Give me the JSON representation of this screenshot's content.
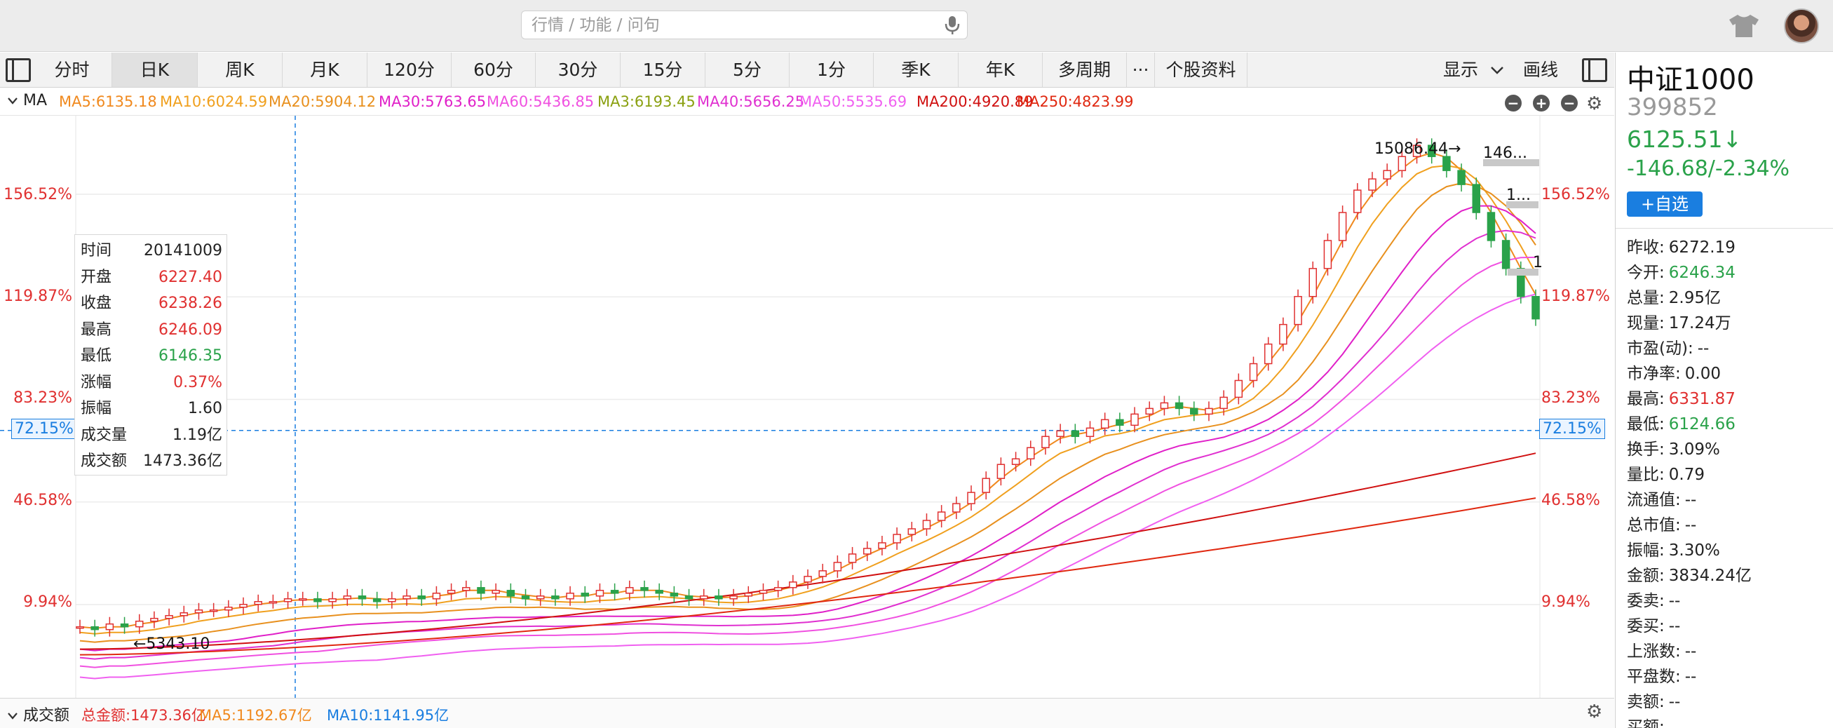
{
  "topbar": {
    "search_placeholder": "行情 / 功能 / 问句",
    "icons": [
      "mic-icon",
      "shirt-icon",
      "avatar"
    ]
  },
  "tabs": [
    {
      "label": "分时",
      "active": false
    },
    {
      "label": "日K",
      "active": true
    },
    {
      "label": "周K",
      "active": false
    },
    {
      "label": "月K",
      "active": false
    },
    {
      "label": "120分",
      "active": false
    },
    {
      "label": "60分",
      "active": false
    },
    {
      "label": "30分",
      "active": false
    },
    {
      "label": "15分",
      "active": false
    },
    {
      "label": "5分",
      "active": false
    },
    {
      "label": "1分",
      "active": false
    },
    {
      "label": "季K",
      "active": false
    },
    {
      "label": "年K",
      "active": false
    },
    {
      "label": "多周期",
      "active": false
    },
    {
      "label": "···",
      "active": false
    },
    {
      "label": "个股资料",
      "active": false
    }
  ],
  "toolbar": {
    "display_label": "显示",
    "draw_label": "画线"
  },
  "ma_legend": {
    "title": "MA",
    "items": [
      {
        "text": "MA5:6135.18",
        "color": "#f0891e"
      },
      {
        "text": "MA10:6024.59",
        "color": "#f0a01e"
      },
      {
        "text": "MA20:5904.12",
        "color": "#e8901e"
      },
      {
        "text": "MA30:5763.65",
        "color": "#e020c8"
      },
      {
        "text": "MA60:5436.85",
        "color": "#f050e0"
      },
      {
        "text": "MA3:6193.45",
        "color": "#8aa010"
      },
      {
        "text": "MA40:5656.25",
        "color": "#e030d0"
      },
      {
        "text": "MA50:5535.69",
        "color": "#f060f0"
      },
      {
        "text": "MA200:4920.89",
        "color": "#d01010"
      },
      {
        "text": "MA250:4823.99",
        "color": "#e02810"
      }
    ]
  },
  "axis": {
    "labels": [
      "156.52%",
      "119.87%",
      "83.23%",
      "72.15%",
      "46.58%",
      "9.94%"
    ],
    "highlight": "72.15%"
  },
  "chart_data": {
    "type": "candlestick",
    "yaxis_percent_ticks": [
      156.52,
      119.87,
      83.23,
      46.58,
      9.94
    ],
    "crosshair_y_percent": 72.15,
    "annotations": [
      {
        "text": "15086.44→",
        "kind": "high"
      },
      {
        "text": "146...",
        "kind": "label"
      },
      {
        "text": "1...",
        "kind": "label"
      },
      {
        "text": "1",
        "kind": "label"
      },
      {
        "text": "←5343.10",
        "kind": "low"
      }
    ],
    "close_series_percent": [
      2,
      1,
      3,
      2,
      4,
      5,
      6,
      7,
      8,
      8,
      9,
      10,
      11,
      11,
      12,
      12,
      11,
      12,
      13,
      12,
      11,
      12,
      13,
      12,
      14,
      15,
      16,
      14,
      15,
      13,
      12,
      13,
      12,
      14,
      13,
      15,
      14,
      16,
      15,
      14,
      13,
      12,
      13,
      12,
      13,
      14,
      15,
      16,
      18,
      20,
      22,
      25,
      28,
      30,
      32,
      35,
      37,
      40,
      43,
      46,
      50,
      55,
      60,
      62,
      66,
      70,
      72,
      70,
      73,
      76,
      74,
      78,
      80,
      82,
      80,
      78,
      80,
      84,
      90,
      96,
      103,
      110,
      120,
      130,
      140,
      150,
      158,
      162,
      165,
      170,
      174,
      170,
      165,
      160,
      150,
      140,
      130,
      120,
      112
    ]
  },
  "info_box": {
    "rows": [
      {
        "k": "时间",
        "v": "20141009",
        "color": "#222222"
      },
      {
        "k": "开盘",
        "v": "6227.40",
        "color": "#e03030"
      },
      {
        "k": "收盘",
        "v": "6238.26",
        "color": "#e03030"
      },
      {
        "k": "最高",
        "v": "6246.09",
        "color": "#e03030"
      },
      {
        "k": "最低",
        "v": "6146.35",
        "color": "#2aa24a"
      },
      {
        "k": "涨幅",
        "v": "0.37%",
        "color": "#e03030"
      },
      {
        "k": "振幅",
        "v": "1.60",
        "color": "#222222"
      },
      {
        "k": "成交量",
        "v": "1.19亿",
        "color": "#222222"
      },
      {
        "k": "成交额",
        "v": "1473.36亿",
        "color": "#222222"
      }
    ]
  },
  "panel": {
    "name": "中证1000",
    "code": "399852",
    "price": "6125.51↓",
    "change": "-146.68/-2.34%",
    "add_button": "+自选",
    "rows": [
      {
        "k": "昨收:",
        "v": "6272.19",
        "cls": ""
      },
      {
        "k": "今开:",
        "v": "6246.34",
        "cls": "dn"
      },
      {
        "k": "总量:",
        "v": "2.95亿",
        "cls": ""
      },
      {
        "k": "现量:",
        "v": "17.24万",
        "cls": ""
      },
      {
        "k": "市盈(动):",
        "v": "--",
        "cls": ""
      },
      {
        "k": "市净率:",
        "v": "0.00",
        "cls": ""
      },
      {
        "k": "最高:",
        "v": "6331.87",
        "cls": "up"
      },
      {
        "k": "最低:",
        "v": "6124.66",
        "cls": "dn"
      },
      {
        "k": "换手:",
        "v": "3.09%",
        "cls": ""
      },
      {
        "k": "量比:",
        "v": "0.79",
        "cls": ""
      },
      {
        "k": "流通值:",
        "v": "--",
        "cls": ""
      },
      {
        "k": "总市值:",
        "v": "--",
        "cls": ""
      },
      {
        "k": "振幅:",
        "v": "3.30%",
        "cls": ""
      },
      {
        "k": "金额:",
        "v": "3834.24亿",
        "cls": ""
      },
      {
        "k": "委卖:",
        "v": "--",
        "cls": ""
      },
      {
        "k": "委买:",
        "v": "--",
        "cls": ""
      },
      {
        "k": "上涨数:",
        "v": "--",
        "cls": ""
      },
      {
        "k": "平盘数:",
        "v": "--",
        "cls": ""
      },
      {
        "k": "卖额:",
        "v": "--",
        "cls": ""
      },
      {
        "k": "买额:",
        "v": "",
        "cls": ""
      }
    ]
  },
  "volume_legend": {
    "title": "成交额",
    "items": [
      {
        "text": "总金额:1473.36亿",
        "color": "#e03030"
      },
      {
        "text": "MA5:1192.67亿",
        "color": "#f0891e"
      },
      {
        "text": "MA10:1141.95亿",
        "color": "#1a7ee0"
      }
    ]
  }
}
